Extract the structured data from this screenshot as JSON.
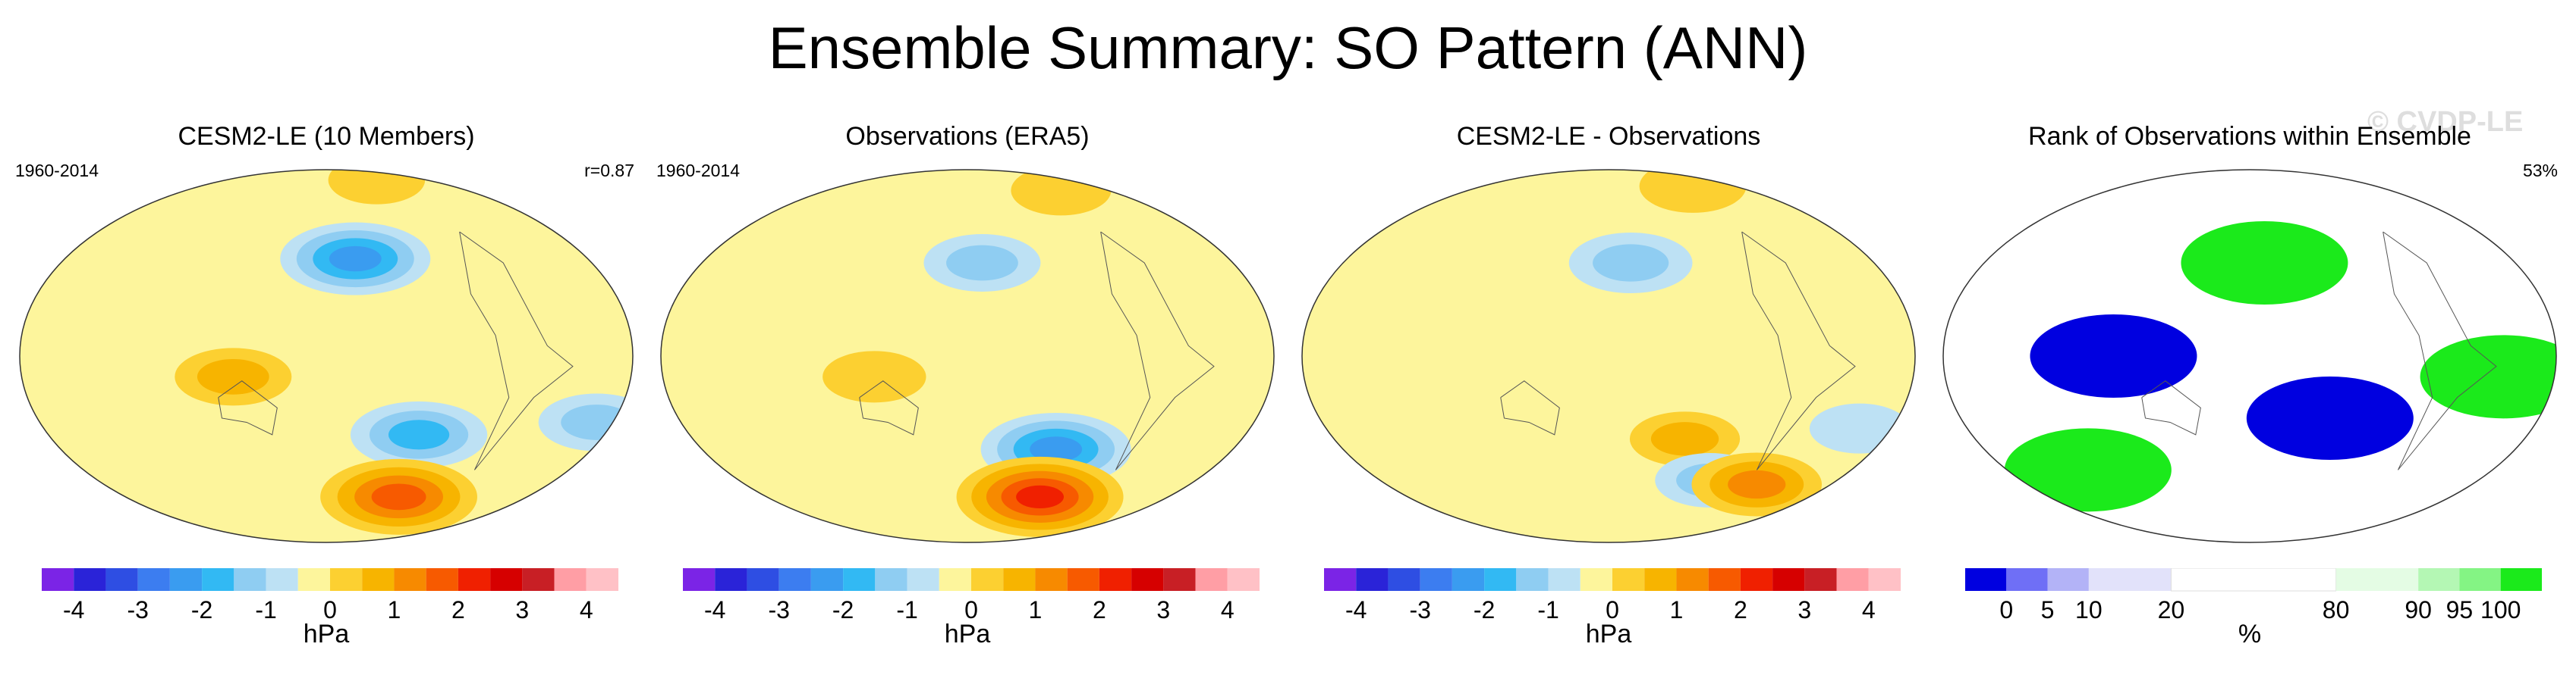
{
  "main_title": "Ensemble Summary: SO Pattern (ANN)",
  "watermark": "© CVDP-LE",
  "colors": {
    "diverging": [
      "#7b24e6",
      "#2a23d8",
      "#2e4ee3",
      "#3c7df0",
      "#3a9cf0",
      "#32b9f3",
      "#8fcdf2",
      "#bde1f4",
      "#fdf59c",
      "#fcd031",
      "#f7b400",
      "#f78a00",
      "#f75a00",
      "#f02000",
      "#d60000",
      "#c81f25",
      "#ff9ea5",
      "#ffc1c6"
    ],
    "rank": [
      "#0000e0",
      "#6f6ff6",
      "#b3b3f7",
      "#e2e2fa",
      "#ffffff",
      "#e4fce4",
      "#b4f7b4",
      "#84f484",
      "#1bea1b"
    ]
  },
  "chart_data": [
    {
      "type": "heatmap",
      "title": "CESM2-LE (10 Members)",
      "period": "1960-2014",
      "stat": "r=0.87",
      "units": "hPa",
      "colorbar_ticks": [
        "-4",
        "-3",
        "-2",
        "-1",
        "0",
        "1",
        "2",
        "3",
        "4"
      ],
      "colorbar_range": [
        -4.5,
        4.5
      ],
      "features": [
        {
          "name": "north-pacific-low",
          "lon": -160,
          "lat": 47,
          "value": -2.0
        },
        {
          "name": "south-pacific-low",
          "lon": -120,
          "lat": -38,
          "value": -1.6
        },
        {
          "name": "south-atlantic-low",
          "lon": -10,
          "lat": -32,
          "value": -1.0
        },
        {
          "name": "maritime-continent-high",
          "lon": 125,
          "lat": -10,
          "value": 1.0
        },
        {
          "name": "amundsen-sea-high",
          "lon": -115,
          "lat": -68,
          "value": 2.2
        },
        {
          "name": "arctic-high",
          "lon": -90,
          "lat": 85,
          "value": 0.4
        }
      ]
    },
    {
      "type": "heatmap",
      "title": "Observations (ERA5)",
      "period": "1960-2014",
      "stat": "",
      "units": "hPa",
      "colorbar_ticks": [
        "-4",
        "-3",
        "-2",
        "-1",
        "0",
        "1",
        "2",
        "3",
        "4"
      ],
      "colorbar_range": [
        -4.5,
        4.5
      ],
      "features": [
        {
          "name": "north-pacific-low",
          "lon": -170,
          "lat": 45,
          "value": -1.0
        },
        {
          "name": "south-pacific-low",
          "lon": -120,
          "lat": -45,
          "value": -2.0
        },
        {
          "name": "amundsen-sea-high",
          "lon": -115,
          "lat": -68,
          "value": 2.5
        },
        {
          "name": "maritime-continent-high",
          "lon": 125,
          "lat": -10,
          "value": 0.6
        },
        {
          "name": "arctic-high",
          "lon": -60,
          "lat": 80,
          "value": 0.5
        }
      ]
    },
    {
      "type": "heatmap",
      "title": "CESM2-LE - Observations",
      "period": "",
      "stat": "",
      "units": "hPa",
      "colorbar_ticks": [
        "-4",
        "-3",
        "-2",
        "-1",
        "0",
        "1",
        "2",
        "3",
        "4"
      ],
      "colorbar_range": [
        -4.5,
        4.5
      ],
      "features": [
        {
          "name": "north-pacific-low",
          "lon": -165,
          "lat": 45,
          "value": -1.2
        },
        {
          "name": "south-pacific-high",
          "lon": -130,
          "lat": -40,
          "value": 0.8
        },
        {
          "name": "south-atlantic-low",
          "lon": -20,
          "lat": -35,
          "value": -0.5
        },
        {
          "name": "amundsen-sea-low",
          "lon": -100,
          "lat": -60,
          "value": -0.8
        },
        {
          "name": "drake-passage-high",
          "lon": -60,
          "lat": -62,
          "value": 1.4
        },
        {
          "name": "arctic-high",
          "lon": -60,
          "lat": 82,
          "value": 0.7
        }
      ]
    },
    {
      "type": "heatmap",
      "title": "Rank of Observations within Ensemble",
      "period": "",
      "stat": "53%",
      "units": "%",
      "colorbar_ticks": [
        "0",
        "5",
        "10",
        "20",
        "80",
        "90",
        "95",
        "100"
      ],
      "colorbar_range": [
        0,
        100
      ],
      "features": [
        {
          "name": "indo-pacific-low-rank",
          "lon": 100,
          "lat": 0,
          "value": 0
        },
        {
          "name": "north-pacific-high-rank",
          "lon": -170,
          "lat": 45,
          "value": 100
        },
        {
          "name": "south-pacific-low-rank",
          "lon": -130,
          "lat": -30,
          "value": 0
        },
        {
          "name": "south-atlantic-high-rank",
          "lon": -30,
          "lat": -10,
          "value": 100
        },
        {
          "name": "southern-ocean-high-rank",
          "lon": 60,
          "lat": -55,
          "value": 100
        }
      ]
    }
  ]
}
